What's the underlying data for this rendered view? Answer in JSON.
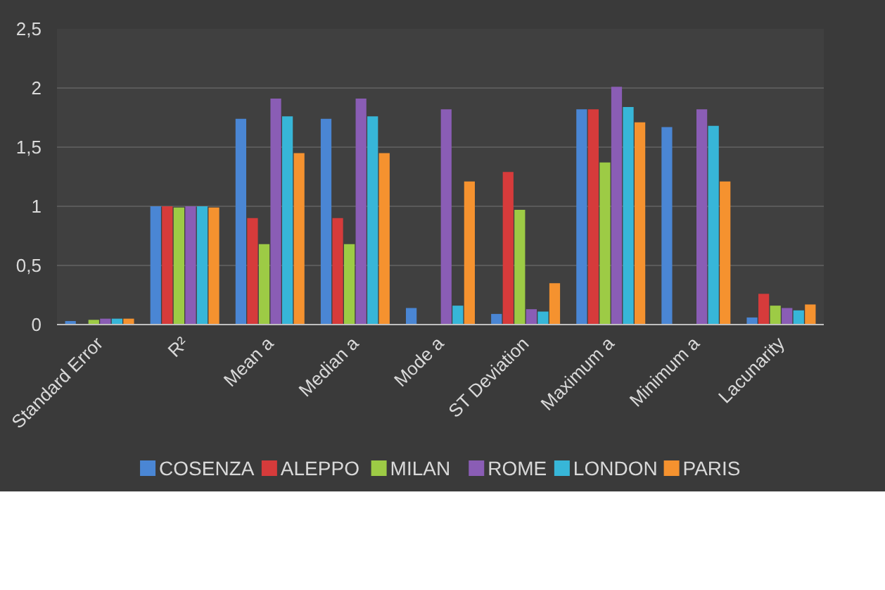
{
  "chart_data": {
    "type": "bar",
    "categories": [
      "Standard Error",
      "R²",
      "Mean a",
      "Median a",
      "Mode a",
      "ST Deviation",
      "Maximum a",
      "Minimum a",
      "Lacunarity"
    ],
    "series": [
      {
        "name": "COSENZA",
        "color": "#4a86d4",
        "values": [
          0.03,
          1,
          1.74,
          1.74,
          0.14,
          0.09,
          1.82,
          1.67,
          0.06
        ]
      },
      {
        "name": "ALEPPO",
        "color": "#d63b3b",
        "values": [
          null,
          1,
          0.9,
          0.9,
          null,
          1.29,
          1.82,
          null,
          0.26
        ]
      },
      {
        "name": "MILAN",
        "color": "#9dcb45",
        "values": [
          0.04,
          0.99,
          0.68,
          0.68,
          null,
          0.97,
          1.37,
          null,
          0.16
        ]
      },
      {
        "name": "ROME",
        "color": "#8a5db5",
        "values": [
          0.05,
          1,
          1.91,
          1.91,
          1.82,
          0.13,
          2.01,
          1.82,
          0.14
        ]
      },
      {
        "name": "LONDON",
        "color": "#37b6d8",
        "values": [
          0.05,
          1,
          1.76,
          1.76,
          0.16,
          0.11,
          1.84,
          1.68,
          0.12
        ]
      },
      {
        "name": "PARIS",
        "color": "#f5922f",
        "values": [
          0.05,
          0.99,
          1.45,
          1.45,
          1.21,
          0.35,
          1.71,
          1.21,
          0.17
        ]
      }
    ],
    "ylim": [
      0,
      2.5
    ],
    "yticks": [
      {
        "value": 0,
        "label": "0"
      },
      {
        "value": 0.5,
        "label": "0,5"
      },
      {
        "value": 1,
        "label": "1"
      },
      {
        "value": 1.5,
        "label": "1,5"
      },
      {
        "value": 2,
        "label": "2"
      },
      {
        "value": 2.5,
        "label": "2,5"
      }
    ],
    "grid": "y",
    "legend": "bottom"
  }
}
